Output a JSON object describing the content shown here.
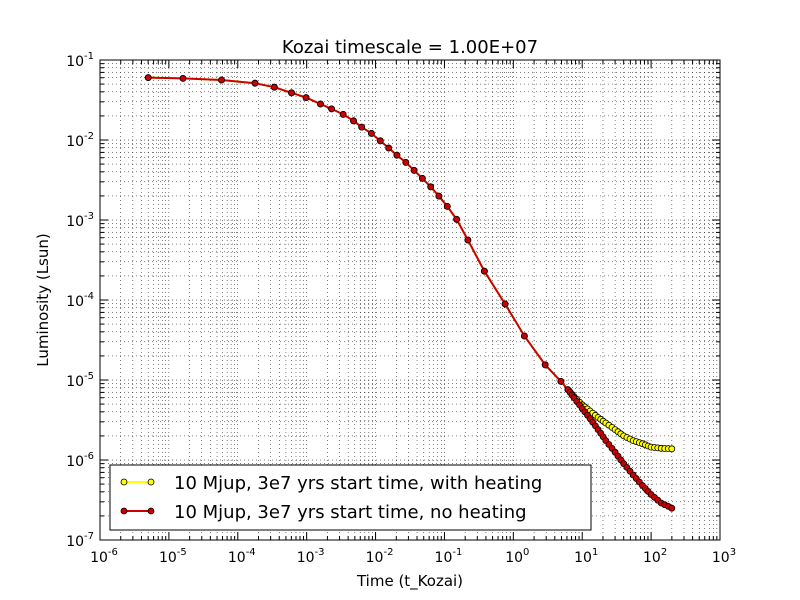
{
  "chart_data": {
    "type": "line",
    "title": "Kozai timescale = 1.00E+07",
    "xlabel": "Time (t_Kozai)",
    "ylabel": "Luminosity (Lsun)",
    "xscale": "log",
    "yscale": "log",
    "xlim": [
      1e-06,
      1000
    ],
    "ylim": [
      1e-07,
      0.1
    ],
    "grid": true,
    "legend_position": "lower-left",
    "x_tick_labels": [
      {
        "base": "10",
        "exp": "-6"
      },
      {
        "base": "10",
        "exp": "-5"
      },
      {
        "base": "10",
        "exp": "-4"
      },
      {
        "base": "10",
        "exp": "-3"
      },
      {
        "base": "10",
        "exp": "-2"
      },
      {
        "base": "10",
        "exp": "-1"
      },
      {
        "base": "10",
        "exp": "0"
      },
      {
        "base": "10",
        "exp": "1"
      },
      {
        "base": "10",
        "exp": "2"
      },
      {
        "base": "10",
        "exp": "3"
      }
    ],
    "y_tick_labels": [
      {
        "base": "10",
        "exp": "-7"
      },
      {
        "base": "10",
        "exp": "-6"
      },
      {
        "base": "10",
        "exp": "-5"
      },
      {
        "base": "10",
        "exp": "-4"
      },
      {
        "base": "10",
        "exp": "-3"
      },
      {
        "base": "10",
        "exp": "-2"
      },
      {
        "base": "10",
        "exp": "-1"
      }
    ],
    "series": [
      {
        "name": "10 Mjup, 3e7 yrs start time, with heating",
        "color": "#ffff00",
        "marker_color": "#ffff00",
        "x": [
          5e-06,
          1.6e-05,
          5.8e-05,
          0.000178,
          0.000339,
          0.000603,
          0.00098,
          0.00159,
          0.0023,
          0.00339,
          0.00479,
          0.0063,
          0.00871,
          0.0117,
          0.0155,
          0.0204,
          0.0275,
          0.0363,
          0.0479,
          0.0631,
          0.0832,
          0.11,
          0.15,
          0.219,
          0.38,
          0.76,
          1.45,
          2.9,
          4.9,
          6.2,
          7.6,
          10,
          13,
          17,
          22,
          30,
          40,
          55,
          75,
          100,
          140,
          200
        ],
        "y": [
          0.0603,
          0.0589,
          0.0562,
          0.0513,
          0.0457,
          0.0389,
          0.0339,
          0.0282,
          0.0245,
          0.0209,
          0.0174,
          0.0145,
          0.0121,
          0.00977,
          0.00794,
          0.00646,
          0.00525,
          0.00417,
          0.00331,
          0.0026,
          0.00199,
          0.00148,
          0.00102,
          0.000562,
          0.000229,
          8.9e-05,
          3.55e-05,
          1.55e-05,
          9.6e-06,
          7.59e-06,
          6.2e-06,
          4.9e-06,
          4.1e-06,
          3.4e-06,
          2.9e-06,
          2.4e-06,
          2e-06,
          1.75e-06,
          1.6e-06,
          1.45e-06,
          1.4e-06,
          1.38e-06
        ]
      },
      {
        "name": "10 Mjup, 3e7 yrs start time, no heating",
        "color": "#cc0000",
        "marker_color": "#cc0000",
        "x": [
          5e-06,
          1.6e-05,
          5.8e-05,
          0.000178,
          0.000339,
          0.000603,
          0.00098,
          0.00159,
          0.0023,
          0.00339,
          0.00479,
          0.0063,
          0.00871,
          0.0117,
          0.0155,
          0.0204,
          0.0275,
          0.0363,
          0.0479,
          0.0631,
          0.0832,
          0.11,
          0.15,
          0.219,
          0.38,
          0.76,
          1.45,
          2.9,
          4.9,
          6.2,
          7.6,
          10,
          13,
          17,
          22,
          30,
          40,
          55,
          75,
          100,
          140,
          200
        ],
        "y": [
          0.0603,
          0.0589,
          0.0562,
          0.0513,
          0.0457,
          0.0389,
          0.0339,
          0.0282,
          0.0245,
          0.0209,
          0.0174,
          0.0145,
          0.0121,
          0.00977,
          0.00794,
          0.00646,
          0.00525,
          0.00417,
          0.00331,
          0.0026,
          0.00199,
          0.00148,
          0.00102,
          0.000562,
          0.000229,
          8.9e-05,
          3.55e-05,
          1.55e-05,
          9.6e-06,
          7.59e-06,
          6e-06,
          4.4e-06,
          3.3e-06,
          2.4e-06,
          1.75e-06,
          1.25e-06,
          9e-07,
          6.5e-07,
          4.8e-07,
          3.7e-07,
          2.9e-07,
          2.5e-07
        ]
      }
    ]
  }
}
